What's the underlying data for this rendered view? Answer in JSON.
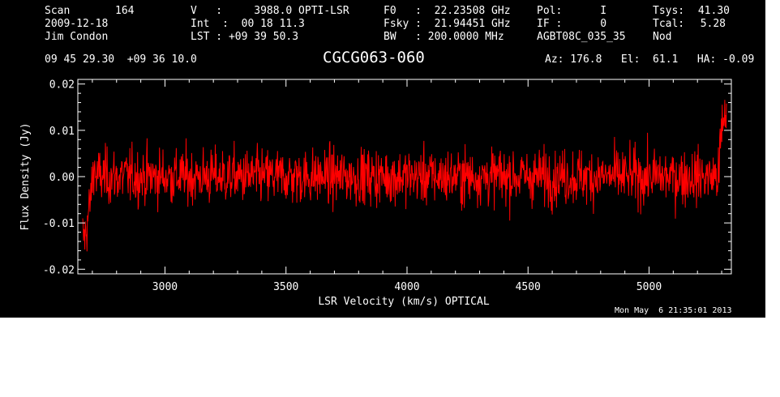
{
  "header": {
    "scan_label": "Scan",
    "scan_value": "164",
    "date": "2009-12-18",
    "observer": "Jim Condon",
    "v_line": "V   :     3988.0 OPTI-LSR",
    "int_line": "Int  :  00 18 11.3",
    "lst_line": "LST : +09 39 50.3",
    "f0_line": "F0   :  22.23508 GHz",
    "fsky_line": "Fsky :  21.94451 GHz",
    "bw_line": "BW   : 200.0000 MHz",
    "pol_line": "Pol:      I",
    "if_line": "IF :      0",
    "project": "AGBT08C_035_35",
    "tsys_label": "Tsys:",
    "tsys_value": "41.30",
    "tcal_label": "Tcal:",
    "tcal_value": "5.28",
    "mode": "Nod",
    "coords": "09 45 29.30  +09 36 10.0",
    "source": "CGCG063-060",
    "az_el_ha": "Az: 176.8   El:  61.1   HA: -0.09"
  },
  "timestamp": "Mon May  6 21:35:01 2013",
  "colors": {
    "background": "#000000",
    "trace": "#ff0000",
    "axes": "#ffffff"
  },
  "chart_data": {
    "type": "line",
    "xlabel": "LSR Velocity (km/s) OPTICAL",
    "ylabel": "Flux Density (Jy)",
    "xlim": [
      2640,
      5340
    ],
    "ylim": [
      -0.021,
      0.021
    ],
    "xticks": [
      3000,
      3500,
      4000,
      4500,
      5000
    ],
    "xtick_labels": [
      "3000",
      "3500",
      "4000",
      "4500",
      "5000"
    ],
    "yticks": [
      -0.02,
      -0.01,
      0.0,
      0.01,
      0.02
    ],
    "ytick_labels": [
      "-0.02",
      "-0.01",
      "0.00",
      "0.01",
      "0.02"
    ],
    "grid": false,
    "series": [
      {
        "color": "#ff0000",
        "x_start": 2660,
        "x_end": 5320,
        "noise_rms_jy": 0.004,
        "features": [
          {
            "x": 2670,
            "y": -0.013
          },
          {
            "x": 2690,
            "y": -0.006
          },
          {
            "x": 2710,
            "y": 0.004
          },
          {
            "x": 5290,
            "y": 0.005
          },
          {
            "x": 5310,
            "y": 0.013
          }
        ]
      }
    ]
  }
}
